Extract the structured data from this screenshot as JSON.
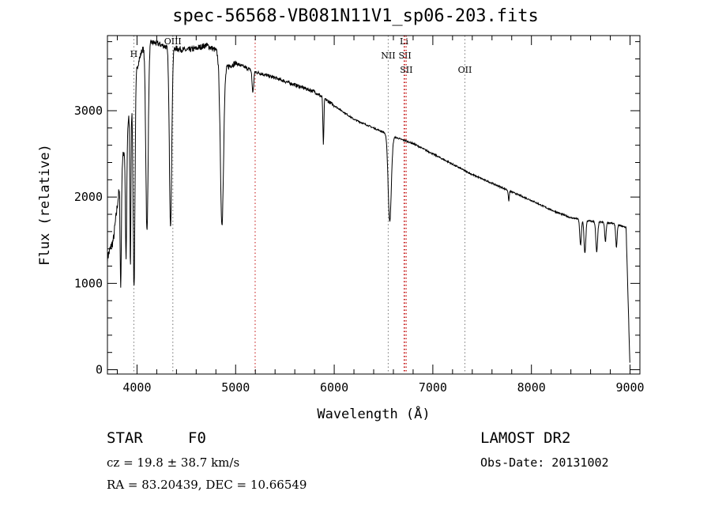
{
  "chart_data": {
    "type": "line",
    "title": "spec-56568-VB081N11V1_sp06-203.fits",
    "xlabel": "Wavelength (Å)",
    "ylabel": "Flux (relative)",
    "xlim": [
      3700,
      9100
    ],
    "ylim": [
      -50,
      3870
    ],
    "x_ticks": [
      4000,
      5000,
      6000,
      7000,
      8000,
      9000
    ],
    "y_ticks": [
      0,
      1000,
      2000,
      3000
    ],
    "line_markers": [
      {
        "label": "H",
        "wavelength": 3968,
        "color": "#888888"
      },
      {
        "label": "OIII",
        "wavelength": 4363,
        "color": "#888888"
      },
      {
        "label": "",
        "wavelength": 5198,
        "color": "#cc3333"
      },
      {
        "label": "NII",
        "wavelength": 6548,
        "color": "#888888"
      },
      {
        "label": "Li",
        "wavelength": 6708,
        "color": "#cc3333"
      },
      {
        "label": "SII",
        "wavelength": 6717,
        "color": "#cc3333"
      },
      {
        "label": "SII",
        "wavelength": 6731,
        "color": "#cc3333"
      },
      {
        "label": "OII",
        "wavelength": 7325,
        "color": "#888888"
      }
    ],
    "continuum": {
      "x": [
        3700,
        3760,
        3800,
        3850,
        3900,
        3950,
        4000,
        4050,
        4100,
        4200,
        4300,
        4400,
        4500,
        4600,
        4700,
        4800,
        4900,
        5000,
        5200,
        5400,
        5600,
        5800,
        6000,
        6200,
        6400,
        6600,
        6800,
        7000,
        7200,
        7400,
        7600,
        7800,
        8000,
        8200,
        8400,
        8600,
        8800,
        8960,
        9000
      ],
      "y": [
        1300,
        1500,
        1900,
        2400,
        2800,
        3100,
        3500,
        3700,
        3800,
        3780,
        3740,
        3720,
        3700,
        3720,
        3760,
        3700,
        3500,
        3550,
        3450,
        3380,
        3300,
        3220,
        3060,
        2900,
        2800,
        2700,
        2620,
        2500,
        2380,
        2260,
        2160,
        2060,
        1960,
        1850,
        1760,
        1720,
        1700,
        1650,
        0
      ]
    },
    "absorption_lines": [
      {
        "x": 3835,
        "depth": 1300,
        "width": 6
      },
      {
        "x": 3889,
        "depth": 1400,
        "width": 7
      },
      {
        "x": 3933,
        "depth": 1800,
        "width": 5
      },
      {
        "x": 3970,
        "depth": 2300,
        "width": 9
      },
      {
        "x": 4101,
        "depth": 2200,
        "width": 12
      },
      {
        "x": 4340,
        "depth": 2050,
        "width": 12
      },
      {
        "x": 4861,
        "depth": 1900,
        "width": 16
      },
      {
        "x": 5175,
        "depth": 250,
        "width": 8
      },
      {
        "x": 5890,
        "depth": 550,
        "width": 5
      },
      {
        "x": 6563,
        "depth": 1000,
        "width": 16
      },
      {
        "x": 7770,
        "depth": 120,
        "width": 5
      },
      {
        "x": 8498,
        "depth": 300,
        "width": 8
      },
      {
        "x": 8542,
        "depth": 380,
        "width": 9
      },
      {
        "x": 8662,
        "depth": 350,
        "width": 9
      },
      {
        "x": 8750,
        "depth": 220,
        "width": 7
      },
      {
        "x": 8862,
        "depth": 260,
        "width": 7
      }
    ],
    "grid": false
  },
  "info": {
    "object_type": "STAR",
    "subclass": "F0",
    "survey": "LAMOST DR2",
    "cz": "cz = 19.8 ± 38.7 km/s",
    "obs_date": "Obs-Date: 20131002",
    "coords": "RA =  83.20439, DEC =  10.66549"
  }
}
